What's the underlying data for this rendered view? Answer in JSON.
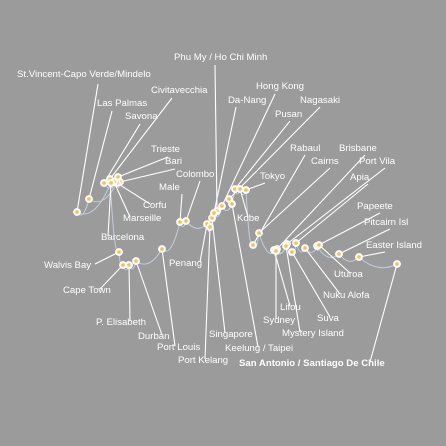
{
  "map": {
    "background": "#9b9b9b",
    "route_color": "#c9d6e6",
    "label_color": "#ffffff",
    "port_fill": "#e9c46a",
    "port_ring": "#fff7e0",
    "final_destination": "San Antonio / Santiago De Chile"
  },
  "ports": [
    {
      "id": "st-vincent",
      "name": "St.Vincent-Capo Verde/Mindelo"
    },
    {
      "id": "las-palmas",
      "name": "Las Palmas"
    },
    {
      "id": "savona",
      "name": "Savona"
    },
    {
      "id": "civitavecchia",
      "name": "Civitavecchia"
    },
    {
      "id": "trieste",
      "name": "Trieste"
    },
    {
      "id": "bari",
      "name": "Bari"
    },
    {
      "id": "corfu",
      "name": "Corfu"
    },
    {
      "id": "marseille",
      "name": "Marseille"
    },
    {
      "id": "barcelona",
      "name": "Barcelona"
    },
    {
      "id": "walvis-bay",
      "name": "Walvis Bay"
    },
    {
      "id": "cape-town",
      "name": "Cape Town"
    },
    {
      "id": "p-elisabeth",
      "name": "P. Elisabeth"
    },
    {
      "id": "durban",
      "name": "Durban"
    },
    {
      "id": "port-louis",
      "name": "Port Louis"
    },
    {
      "id": "male",
      "name": "Male"
    },
    {
      "id": "colombo",
      "name": "Colombo"
    },
    {
      "id": "penang",
      "name": "Penang"
    },
    {
      "id": "port-kelang",
      "name": "Port Kelang"
    },
    {
      "id": "singapore",
      "name": "Singapore"
    },
    {
      "id": "phu-my",
      "name": "Phu My / Ho Chi Minh"
    },
    {
      "id": "hong-kong",
      "name": "Hong Kong"
    },
    {
      "id": "da-nang",
      "name": "Da-Nang"
    },
    {
      "id": "nagasaki",
      "name": "Nagasaki"
    },
    {
      "id": "pusan",
      "name": "Pusan"
    },
    {
      "id": "keelung",
      "name": "Keelung / Taipei"
    },
    {
      "id": "tokyo",
      "name": "Tokyo"
    },
    {
      "id": "kobe",
      "name": "Kobe"
    },
    {
      "id": "rabaul",
      "name": "Rabaul"
    },
    {
      "id": "cairns",
      "name": "Cairns"
    },
    {
      "id": "brisbane",
      "name": "Brisbane"
    },
    {
      "id": "port-vila",
      "name": "Port Vila"
    },
    {
      "id": "apia",
      "name": "Apia"
    },
    {
      "id": "papeete",
      "name": "Papeete"
    },
    {
      "id": "pitcairn",
      "name": "Pitcairn Isl"
    },
    {
      "id": "easter-island",
      "name": "Easter Island"
    },
    {
      "id": "uturoa",
      "name": "Uturoa"
    },
    {
      "id": "nuku-alofa",
      "name": "Nuku Alofa"
    },
    {
      "id": "suva",
      "name": "Suva"
    },
    {
      "id": "mystery-island",
      "name": "Mystery Island"
    },
    {
      "id": "lifou",
      "name": "Lifou"
    },
    {
      "id": "sydney",
      "name": "Sydney"
    },
    {
      "id": "san-antonio",
      "name": "San Antonio / Santiago De Chile"
    }
  ]
}
